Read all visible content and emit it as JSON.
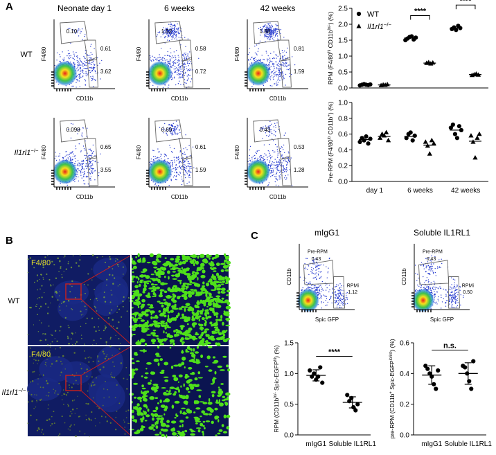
{
  "panel_labels": [
    "A",
    "B",
    "C"
  ],
  "flow_a": {
    "columns": [
      "Neonate day 1",
      "6 weeks",
      "42 weeks"
    ],
    "rows": [
      [
        "WT"
      ],
      [
        "Il1rl1",
        "−/−"
      ]
    ],
    "x_label": "CD11b",
    "y_label": "F4/80",
    "gates": [
      [
        [
          "0.10",
          "0.61",
          "3.62"
        ],
        [
          "1.52",
          "0.58",
          "0.72"
        ],
        [
          "1.88",
          "0.81",
          "1.59"
        ]
      ],
      [
        [
          "0.098",
          "0.65",
          "3.55"
        ],
        [
          "0.69",
          "0.61",
          "1.59"
        ],
        [
          "0.43",
          "0.53",
          "1.28"
        ]
      ]
    ]
  },
  "microscopy": {
    "stain": "F4/80",
    "rows": [
      [
        "WT"
      ],
      [
        "Il1rl1",
        "−/−"
      ]
    ]
  },
  "flow_c": {
    "titles": [
      "mIgG1",
      "Soluble IL1RL1"
    ],
    "x_label": "Spic GFP",
    "y_label": "CD11b",
    "gates": [
      [
        [
          "Pre-RPM",
          "0.43"
        ],
        [
          "RPMi",
          "1.12"
        ]
      ],
      [
        [
          "Pre-RPM",
          "0.43"
        ],
        [
          "RPMi",
          "0.50"
        ]
      ]
    ]
  },
  "chart_data": [
    {
      "type": "dot",
      "ylabel": [
        "RPM (F4/80",
        "hi",
        " CD11b",
        "lo/-",
        ") (%)"
      ],
      "ylim": [
        0,
        2.5
      ],
      "yticks": [
        {
          "value": 0,
          "label": "0.0"
        },
        {
          "value": 0.5,
          "label": "0.5"
        },
        {
          "value": 1,
          "label": "1.0"
        },
        {
          "value": 1.5,
          "label": "1.5"
        },
        {
          "value": 2,
          "label": "2.0"
        },
        {
          "value": 2.5,
          "label": "2.5"
        }
      ],
      "legend": "top-left",
      "series": [
        {
          "name": "WT",
          "marker": "circle",
          "color": "#000000",
          "values": [
            [
              0.08,
              0.1,
              0.12,
              0.1,
              0.09,
              0.11
            ],
            [
              1.5,
              1.55,
              1.6,
              1.62,
              1.52,
              1.58
            ],
            [
              1.85,
              1.9,
              1.82,
              1.95,
              1.88
            ]
          ],
          "means": [
            0.1,
            1.57,
            1.88
          ]
        },
        {
          "name": [
            "Il1rl1",
            "−/−"
          ],
          "marker": "triangle",
          "color": "#000000",
          "values": [
            [
              0.08,
              0.1,
              0.09,
              0.11
            ],
            [
              0.78,
              0.8,
              0.76,
              0.79
            ],
            [
              0.4,
              0.42,
              0.44,
              0.41
            ]
          ],
          "means": [
            0.095,
            0.78,
            0.42
          ]
        }
      ],
      "annotations": [
        {
          "text": "****",
          "category": 1
        },
        {
          "text": "****",
          "category": 2
        }
      ]
    },
    {
      "type": "dot",
      "ylabel": [
        "Pre-RPM (F4/80",
        "lo",
        " CD11b",
        "+",
        ") (%)"
      ],
      "categories": [
        "day 1",
        "6 weeks",
        "42 weeks"
      ],
      "ylim": [
        0,
        1
      ],
      "yticks": [
        {
          "value": 0,
          "label": "0.0"
        },
        {
          "value": 0.2,
          "label": "0.2"
        },
        {
          "value": 0.4,
          "label": "0.4"
        },
        {
          "value": 0.6,
          "label": "0.6"
        },
        {
          "value": 0.8,
          "label": "0.8"
        },
        {
          "value": 1,
          "label": "1.0"
        }
      ],
      "series": [
        {
          "marker": "circle",
          "color": "#000000",
          "values": [
            [
              0.5,
              0.55,
              0.52,
              0.57,
              0.48,
              0.54
            ],
            [
              0.55,
              0.6,
              0.62,
              0.52,
              0.58
            ],
            [
              0.68,
              0.72,
              0.6,
              0.55,
              0.7,
              0.65
            ]
          ],
          "means": [
            0.53,
            0.57,
            0.65
          ]
        },
        {
          "marker": "triangle",
          "color": "#000000",
          "values": [
            [
              0.55,
              0.6,
              0.58,
              0.62,
              0.52
            ],
            [
              0.5,
              0.45,
              0.35,
              0.52,
              0.48
            ],
            [
              0.58,
              0.5,
              0.3,
              0.55,
              0.6
            ]
          ],
          "means": [
            0.57,
            0.46,
            0.51
          ]
        }
      ]
    },
    {
      "type": "dot",
      "ylabel": [
        "RPM (CD11b",
        "lo/-",
        " Spic-EGFP",
        "hi",
        ") (%)"
      ],
      "categories": [
        "mIgG1",
        "Soluble IL1RL1"
      ],
      "ylim": [
        0,
        1.5
      ],
      "yticks": [
        {
          "value": 0,
          "label": "0.0"
        },
        {
          "value": 0.5,
          "label": "0.5"
        },
        {
          "value": 1,
          "label": "1.0"
        },
        {
          "value": 1.5,
          "label": "1.5"
        }
      ],
      "series": [
        {
          "marker": "circle",
          "color": "#000000",
          "values": [
            [
              1.05,
              0.95,
              1.0,
              0.9,
              0.95,
              1.1,
              0.85
            ],
            [
              0.65,
              0.55,
              0.6,
              0.45,
              0.4,
              0.5
            ]
          ],
          "means": [
            0.97,
            0.53
          ],
          "sd": [
            0.09,
            0.09
          ]
        }
      ],
      "annotations": [
        {
          "text": "****",
          "between": [
            0,
            1
          ]
        }
      ]
    },
    {
      "type": "dot",
      "ylabel": [
        "pre-RPM (CD11b",
        "+",
        " Spic-EGFP",
        "lo/int",
        ") (%)"
      ],
      "categories": [
        "mIgG1",
        "Soluble IL1RL1"
      ],
      "ylim": [
        0,
        0.6
      ],
      "yticks": [
        {
          "value": 0,
          "label": "0.0"
        },
        {
          "value": 0.2,
          "label": "0.2"
        },
        {
          "value": 0.4,
          "label": "0.4"
        },
        {
          "value": 0.6,
          "label": "0.6"
        }
      ],
      "series": [
        {
          "marker": "circle",
          "color": "#000000",
          "values": [
            [
              0.45,
              0.43,
              0.4,
              0.38,
              0.33,
              0.3,
              0.42
            ],
            [
              0.45,
              0.44,
              0.4,
              0.35,
              0.3,
              0.48
            ]
          ],
          "means": [
            0.39,
            0.4
          ],
          "sd": [
            0.06,
            0.07
          ]
        }
      ],
      "annotations": [
        {
          "text": "n.s.",
          "between": [
            0,
            1
          ]
        }
      ]
    }
  ]
}
